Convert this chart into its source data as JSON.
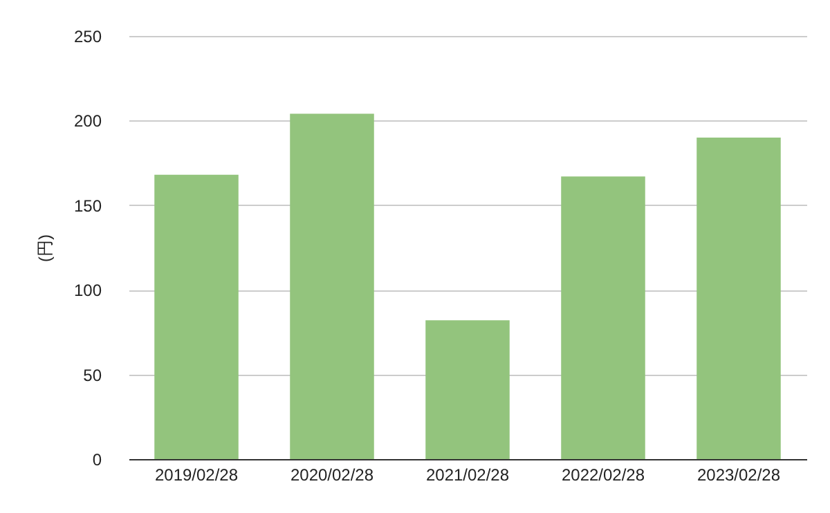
{
  "chart_data": {
    "type": "bar",
    "ylabel": "(円)",
    "categories": [
      "2019/02/28",
      "2020/02/28",
      "2021/02/28",
      "2022/02/28",
      "2023/02/28"
    ],
    "values": [
      168,
      204,
      82,
      167,
      190
    ],
    "color": "#93c47d",
    "ylim": [
      0,
      250
    ],
    "yticks": [
      0,
      50,
      100,
      150,
      200,
      250
    ],
    "grid": "y"
  }
}
